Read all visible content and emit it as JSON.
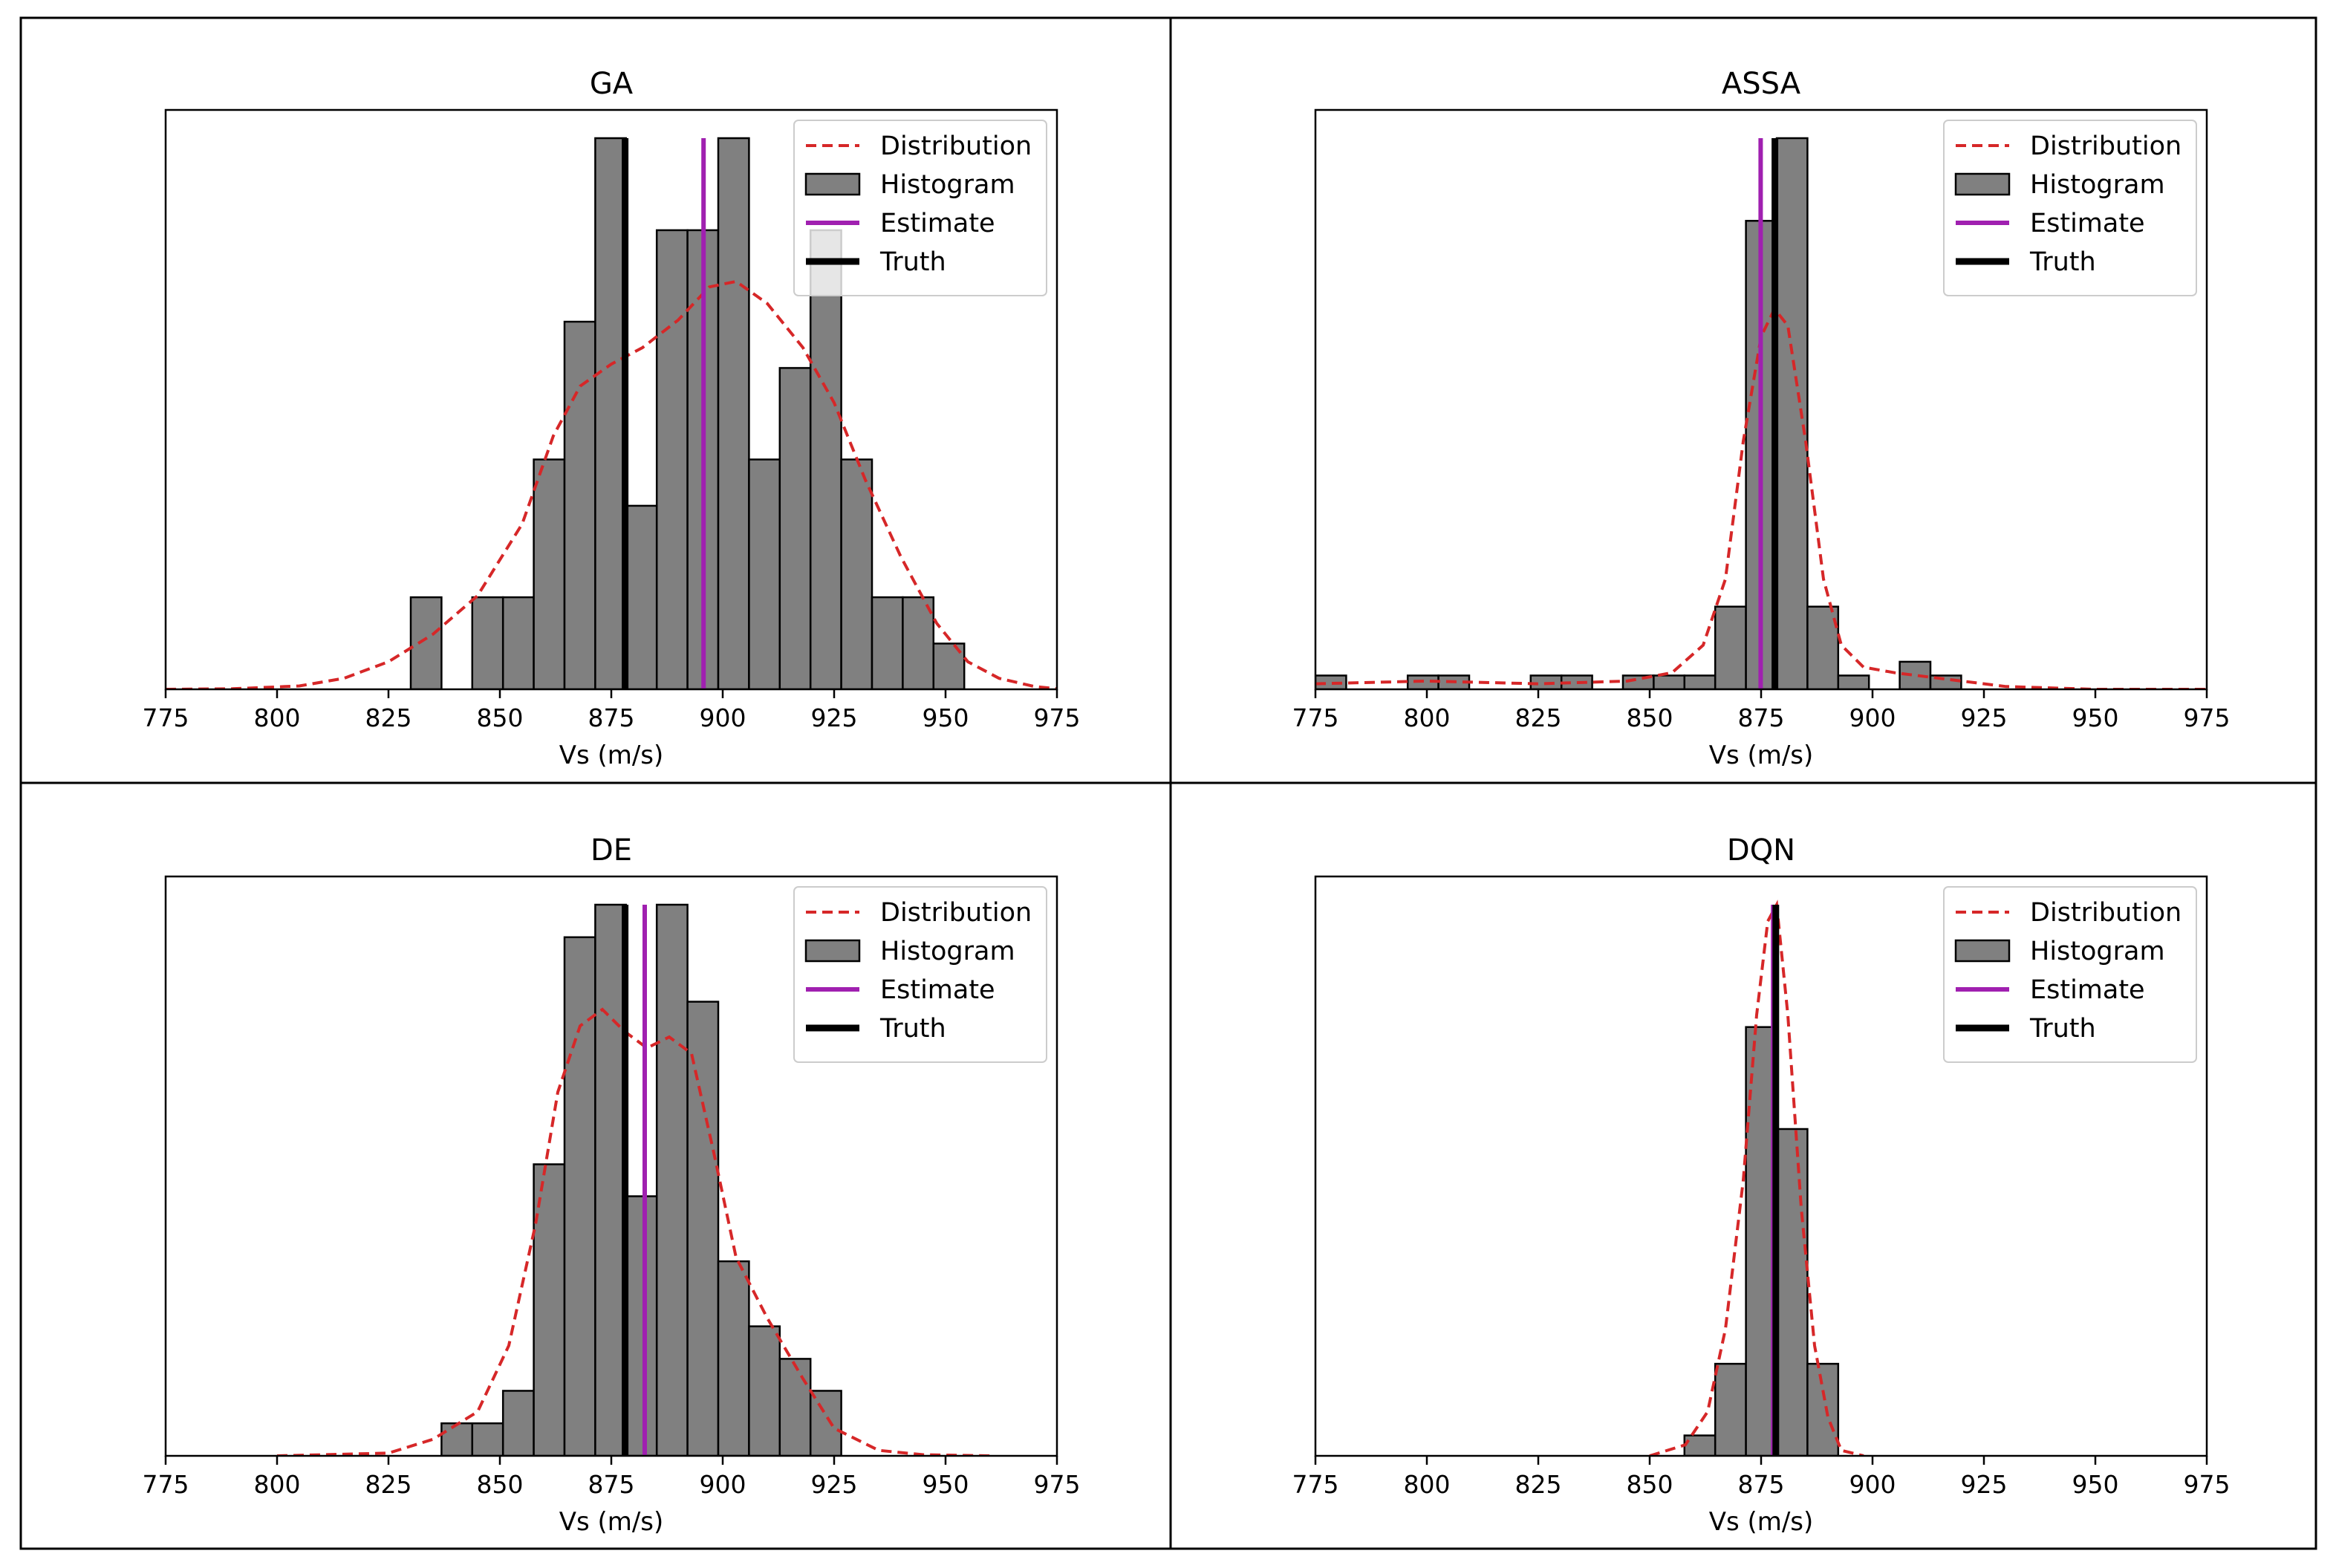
{
  "figure": {
    "panels": [
      "GA",
      "ASSA",
      "DE",
      "DQN"
    ]
  },
  "colors": {
    "distribution": "#d62728",
    "histogram_fill": "#808080",
    "histogram_edge": "#000000",
    "estimate": "#a020b0",
    "truth": "#000000",
    "grid_border": "#000000"
  },
  "chart_data": [
    {
      "type": "bar",
      "title": "GA",
      "xlabel": "Vs (m/s)",
      "ylabel": "",
      "xlim": [
        775,
        975
      ],
      "ylim": [
        0,
        1
      ],
      "xticks": [
        775,
        800,
        825,
        850,
        875,
        900,
        925,
        950,
        975
      ],
      "xtick_labels": [
        "775",
        "800",
        "825",
        "850",
        "875",
        "900",
        "925",
        "950",
        "975"
      ],
      "grid": false,
      "legend": {
        "position": "top-right",
        "entries": [
          "Distribution",
          "Histogram",
          "Estimate",
          "Truth"
        ]
      },
      "histogram": {
        "name": "Histogram",
        "bin_width": 6.9,
        "bin_starts": [
          830,
          843.8,
          850.7,
          857.6,
          864.5,
          871.4,
          878.3,
          885.2,
          892.1,
          899,
          905.9,
          912.8,
          919.7,
          926.6,
          933.5,
          940.4,
          947.3
        ],
        "heights": [
          0.167,
          0.167,
          0.167,
          0.417,
          0.667,
          1.0,
          0.333,
          0.833,
          0.833,
          1.0,
          0.417,
          0.583,
          0.833,
          0.417,
          0.167,
          0.167,
          0.083
        ]
      },
      "distribution": {
        "name": "Distribution",
        "x": [
          775,
          790,
          805,
          815,
          825,
          835,
          845,
          855,
          862,
          868,
          875,
          882,
          890,
          897,
          903,
          910,
          918,
          925,
          932,
          940,
          948,
          955,
          962,
          970,
          975
        ],
        "y": [
          0.0,
          0.001,
          0.006,
          0.02,
          0.05,
          0.1,
          0.17,
          0.3,
          0.46,
          0.55,
          0.59,
          0.62,
          0.67,
          0.73,
          0.74,
          0.7,
          0.62,
          0.52,
          0.38,
          0.24,
          0.12,
          0.05,
          0.02,
          0.005,
          0.001
        ]
      },
      "estimate": 895.7,
      "truth": 878.1
    },
    {
      "type": "bar",
      "title": "ASSA",
      "xlabel": "Vs (m/s)",
      "ylabel": "",
      "xlim": [
        775,
        975
      ],
      "ylim": [
        0,
        1
      ],
      "xticks": [
        775,
        800,
        825,
        850,
        875,
        900,
        925,
        950,
        975
      ],
      "xtick_labels": [
        "775",
        "800",
        "825",
        "850",
        "875",
        "900",
        "925",
        "950",
        "975"
      ],
      "grid": false,
      "legend": {
        "position": "top-right",
        "entries": [
          "Distribution",
          "Histogram",
          "Estimate",
          "Truth"
        ]
      },
      "histogram": {
        "name": "Histogram",
        "bin_width": 6.9,
        "bin_starts": [
          775,
          795.7,
          802.6,
          823.3,
          830.2,
          844,
          850.9,
          857.8,
          864.7,
          871.6,
          878.5,
          885.4,
          892.3,
          906.1,
          913
        ],
        "heights": [
          0.025,
          0.025,
          0.025,
          0.025,
          0.025,
          0.025,
          0.025,
          0.025,
          0.15,
          0.85,
          1.0,
          0.15,
          0.025,
          0.05,
          0.025
        ]
      },
      "distribution": {
        "name": "Distribution",
        "x": [
          775,
          800,
          825,
          845,
          855,
          862,
          867,
          871,
          875,
          878,
          881,
          885,
          889,
          893,
          898,
          905,
          915,
          930,
          950,
          975
        ],
        "y": [
          0.01,
          0.015,
          0.01,
          0.015,
          0.03,
          0.08,
          0.2,
          0.45,
          0.64,
          0.69,
          0.66,
          0.45,
          0.2,
          0.08,
          0.04,
          0.03,
          0.02,
          0.005,
          0.0,
          0.0
        ]
      },
      "estimate": 874.9,
      "truth": 878.1
    },
    {
      "type": "bar",
      "title": "DE",
      "xlabel": "Vs (m/s)",
      "ylabel": "",
      "xlim": [
        775,
        975
      ],
      "ylim": [
        0,
        1
      ],
      "xticks": [
        775,
        800,
        825,
        850,
        875,
        900,
        925,
        950,
        975
      ],
      "xtick_labels": [
        "775",
        "800",
        "825",
        "850",
        "875",
        "900",
        "925",
        "950",
        "975"
      ],
      "grid": false,
      "legend": {
        "position": "top-right",
        "entries": [
          "Distribution",
          "Histogram",
          "Estimate",
          "Truth"
        ]
      },
      "histogram": {
        "name": "Histogram",
        "bin_width": 6.9,
        "bin_starts": [
          836.9,
          843.8,
          850.7,
          857.6,
          864.5,
          871.4,
          878.3,
          885.2,
          892.1,
          899,
          905.9,
          912.8,
          919.7
        ],
        "heights": [
          0.059,
          0.059,
          0.118,
          0.529,
          0.941,
          1.0,
          0.471,
          1.0,
          0.824,
          0.353,
          0.235,
          0.176,
          0.118
        ]
      },
      "distribution": {
        "name": "Distribution",
        "x": [
          800,
          825,
          835,
          845,
          852,
          858,
          863,
          868,
          873,
          878,
          883,
          888,
          893,
          898,
          903,
          910,
          918,
          925,
          935,
          945,
          960
        ],
        "y": [
          0.0,
          0.005,
          0.03,
          0.08,
          0.2,
          0.42,
          0.66,
          0.78,
          0.81,
          0.77,
          0.74,
          0.76,
          0.73,
          0.55,
          0.36,
          0.25,
          0.14,
          0.05,
          0.01,
          0.002,
          0.0
        ]
      },
      "estimate": 882.5,
      "truth": 878.1
    },
    {
      "type": "bar",
      "title": "DQN",
      "xlabel": "Vs (m/s)",
      "ylabel": "",
      "xlim": [
        775,
        975
      ],
      "ylim": [
        0,
        1
      ],
      "xticks": [
        775,
        800,
        825,
        850,
        875,
        900,
        925,
        950,
        975
      ],
      "xtick_labels": [
        "775",
        "800",
        "825",
        "850",
        "875",
        "900",
        "925",
        "950",
        "975"
      ],
      "grid": false,
      "legend": {
        "position": "top-right",
        "entries": [
          "Distribution",
          "Histogram",
          "Estimate",
          "Truth"
        ]
      },
      "histogram": {
        "name": "Histogram",
        "bin_width": 6.9,
        "bin_starts": [
          857.8,
          864.7,
          871.6,
          878.5,
          885.4
        ],
        "heights": [
          0.037,
          0.167,
          0.778,
          0.593,
          0.167
        ]
      },
      "distribution": {
        "name": "Distribution",
        "x": [
          850,
          858,
          863,
          867,
          871,
          874,
          876.5,
          878.5,
          881,
          884,
          887,
          890,
          893,
          898
        ],
        "y": [
          0.0,
          0.02,
          0.08,
          0.23,
          0.5,
          0.8,
          0.97,
          1.0,
          0.8,
          0.45,
          0.2,
          0.07,
          0.01,
          0.0
        ]
      },
      "estimate": 877.7,
      "truth": 878.3
    }
  ]
}
